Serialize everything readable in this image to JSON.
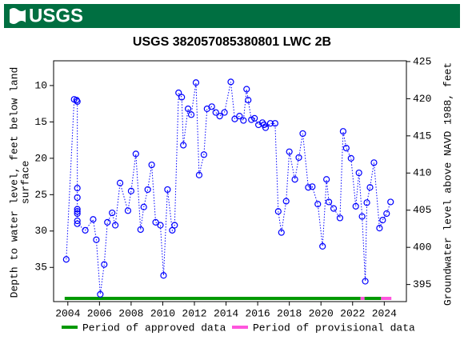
{
  "header": {
    "logo": "USGS"
  },
  "chart_data": {
    "type": "scatter",
    "title": "USGS 382057085380801 LWC 2B",
    "ylabel": [
      "Depth to water level, feet below land",
      "surface"
    ],
    "y2label": "Groundwater level above NAVD 1988, feet",
    "xlim": [
      2003.1,
      2025.4
    ],
    "xticks": [
      2004,
      2006,
      2008,
      2010,
      2012,
      2014,
      2016,
      2018,
      2020,
      2022,
      2024
    ],
    "ylim": [
      6.6,
      39.7
    ],
    "y_inverted": true,
    "yticks": [
      10,
      15,
      20,
      25,
      30,
      35
    ],
    "y2lim": [
      392.7,
      425.1
    ],
    "y2ticks": [
      395,
      400,
      405,
      410,
      415,
      420,
      425
    ],
    "series": [
      {
        "color": "#0000ff",
        "x": [
          2003.9,
          2004.4,
          2004.55,
          2004.6,
          2004.6,
          2004.6,
          2004.6,
          2004.6,
          2004.6,
          2004.6,
          2004.6,
          2005.1,
          2005.6,
          2005.8,
          2006.05,
          2006.3,
          2006.5,
          2006.8,
          2007.0,
          2007.3,
          2007.8,
          2008.0,
          2008.3,
          2008.6,
          2008.8,
          2009.05,
          2009.3,
          2009.55,
          2009.85,
          2010.05,
          2010.3,
          2010.6,
          2010.75,
          2011.0,
          2011.2,
          2011.3,
          2011.6,
          2011.8,
          2012.1,
          2012.3,
          2012.6,
          2012.8,
          2013.1,
          2013.35,
          2013.6,
          2013.9,
          2014.3,
          2014.55,
          2014.85,
          2015.1,
          2015.3,
          2015.4,
          2015.6,
          2015.8,
          2016.05,
          2016.3,
          2016.4,
          2016.5,
          2016.8,
          2017.1,
          2017.3,
          2017.5,
          2017.8,
          2018.0,
          2018.35,
          2018.6,
          2018.85,
          2019.2,
          2019.45,
          2019.8,
          2020.1,
          2020.35,
          2020.5,
          2020.8,
          2021.2,
          2021.4,
          2021.6,
          2021.9,
          2022.2,
          2022.4,
          2022.6,
          2022.8,
          2022.9,
          2023.1,
          2023.35,
          2023.7,
          2023.9,
          2024.15,
          2024.4
        ],
        "values": [
          33.9,
          11.9,
          12.0,
          12.2,
          24.1,
          25.4,
          27.0,
          27.3,
          27.6,
          28.6,
          29.0,
          29.9,
          28.4,
          31.2,
          38.7,
          34.6,
          28.8,
          27.5,
          29.2,
          23.4,
          27.2,
          24.5,
          19.4,
          29.8,
          26.7,
          24.3,
          20.9,
          28.8,
          29.2,
          36.1,
          24.3,
          29.9,
          29.2,
          11.0,
          11.6,
          18.2,
          13.2,
          14.0,
          9.6,
          22.3,
          19.5,
          13.2,
          12.9,
          13.7,
          14.2,
          13.7,
          9.5,
          14.6,
          14.2,
          14.8,
          10.5,
          12.0,
          14.7,
          14.5,
          15.4,
          15.1,
          15.4,
          15.8,
          15.2,
          15.2,
          27.3,
          30.2,
          25.9,
          19.1,
          22.9,
          19.9,
          16.6,
          24.0,
          23.9,
          26.3,
          32.1,
          22.9,
          26.0,
          26.9,
          28.2,
          16.3,
          18.6,
          20.0,
          26.6,
          22.0,
          28.0,
          36.9,
          26.1,
          24.0,
          20.6,
          29.6,
          28.5,
          27.6,
          26.0
        ]
      }
    ],
    "periods": [
      {
        "name": "Period of approved data",
        "color": "#009900",
        "ranges": [
          [
            2003.8,
            2022.5
          ],
          [
            2022.75,
            2023.8
          ]
        ]
      },
      {
        "name": "Period of provisional data",
        "color": "#ff55dd",
        "ranges": [
          [
            2022.5,
            2022.75
          ],
          [
            2023.8,
            2024.45
          ]
        ]
      }
    ]
  }
}
